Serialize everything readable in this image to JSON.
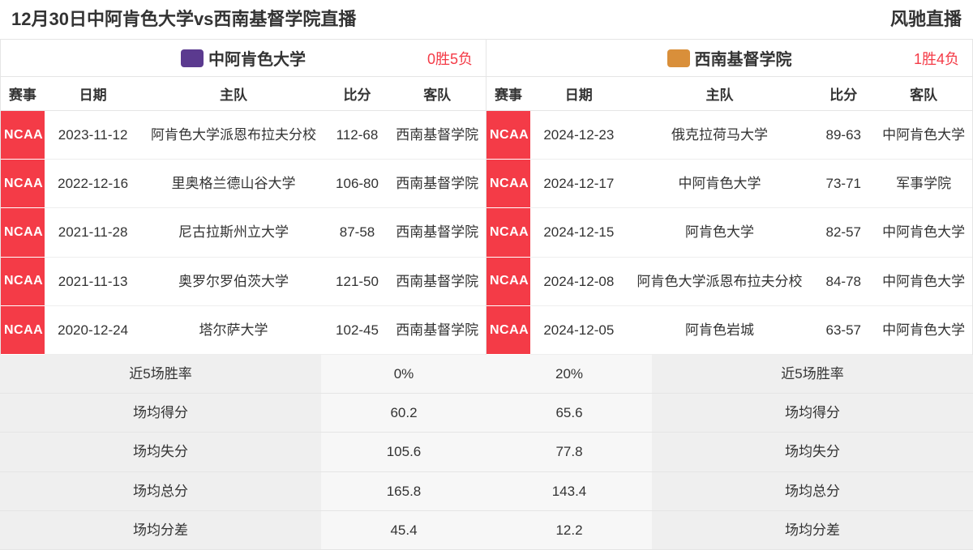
{
  "colors": {
    "tag_bg": "#f43b47",
    "record_text": "#f43b47",
    "logo_left": "#5b3a8f",
    "logo_right": "#d98f3a"
  },
  "header": {
    "title": "12月30日中阿肯色大学vs西南基督学院直播",
    "site": "风驰直播"
  },
  "col_headers": [
    "赛事",
    "日期",
    "主队",
    "比分",
    "客队"
  ],
  "col_widths_pct": [
    9,
    20,
    38,
    13,
    20
  ],
  "teams": [
    {
      "name": "中阿肯色大学",
      "record": "0胜5负",
      "logo_color_key": "logo_left",
      "games": [
        {
          "tag": "NCAA",
          "date": "2023-11-12",
          "home": "阿肯色大学派恩布拉夫分校",
          "score": "112-68",
          "away": "西南基督学院"
        },
        {
          "tag": "NCAA",
          "date": "2022-12-16",
          "home": "里奥格兰德山谷大学",
          "score": "106-80",
          "away": "西南基督学院"
        },
        {
          "tag": "NCAA",
          "date": "2021-11-28",
          "home": "尼古拉斯州立大学",
          "score": "87-58",
          "away": "西南基督学院"
        },
        {
          "tag": "NCAA",
          "date": "2021-11-13",
          "home": "奥罗尔罗伯茨大学",
          "score": "121-50",
          "away": "西南基督学院"
        },
        {
          "tag": "NCAA",
          "date": "2020-12-24",
          "home": "塔尔萨大学",
          "score": "102-45",
          "away": "西南基督学院"
        }
      ]
    },
    {
      "name": "西南基督学院",
      "record": "1胜4负",
      "logo_color_key": "logo_right",
      "games": [
        {
          "tag": "NCAA",
          "date": "2024-12-23",
          "home": "俄克拉荷马大学",
          "score": "89-63",
          "away": "中阿肯色大学"
        },
        {
          "tag": "NCAA",
          "date": "2024-12-17",
          "home": "中阿肯色大学",
          "score": "73-71",
          "away": "军事学院"
        },
        {
          "tag": "NCAA",
          "date": "2024-12-15",
          "home": "阿肯色大学",
          "score": "82-57",
          "away": "中阿肯色大学"
        },
        {
          "tag": "NCAA",
          "date": "2024-12-08",
          "home": "阿肯色大学派恩布拉夫分校",
          "score": "84-78",
          "away": "中阿肯色大学"
        },
        {
          "tag": "NCAA",
          "date": "2024-12-05",
          "home": "阿肯色岩城",
          "score": "63-57",
          "away": "中阿肯色大学"
        }
      ]
    }
  ],
  "summary": {
    "labels": [
      "近5场胜率",
      "场均得分",
      "场均失分",
      "场均总分",
      "场均分差"
    ],
    "left_values": [
      "0%",
      "60.2",
      "105.6",
      "165.8",
      "45.4"
    ],
    "right_values": [
      "20%",
      "65.6",
      "77.8",
      "143.4",
      "12.2"
    ]
  }
}
